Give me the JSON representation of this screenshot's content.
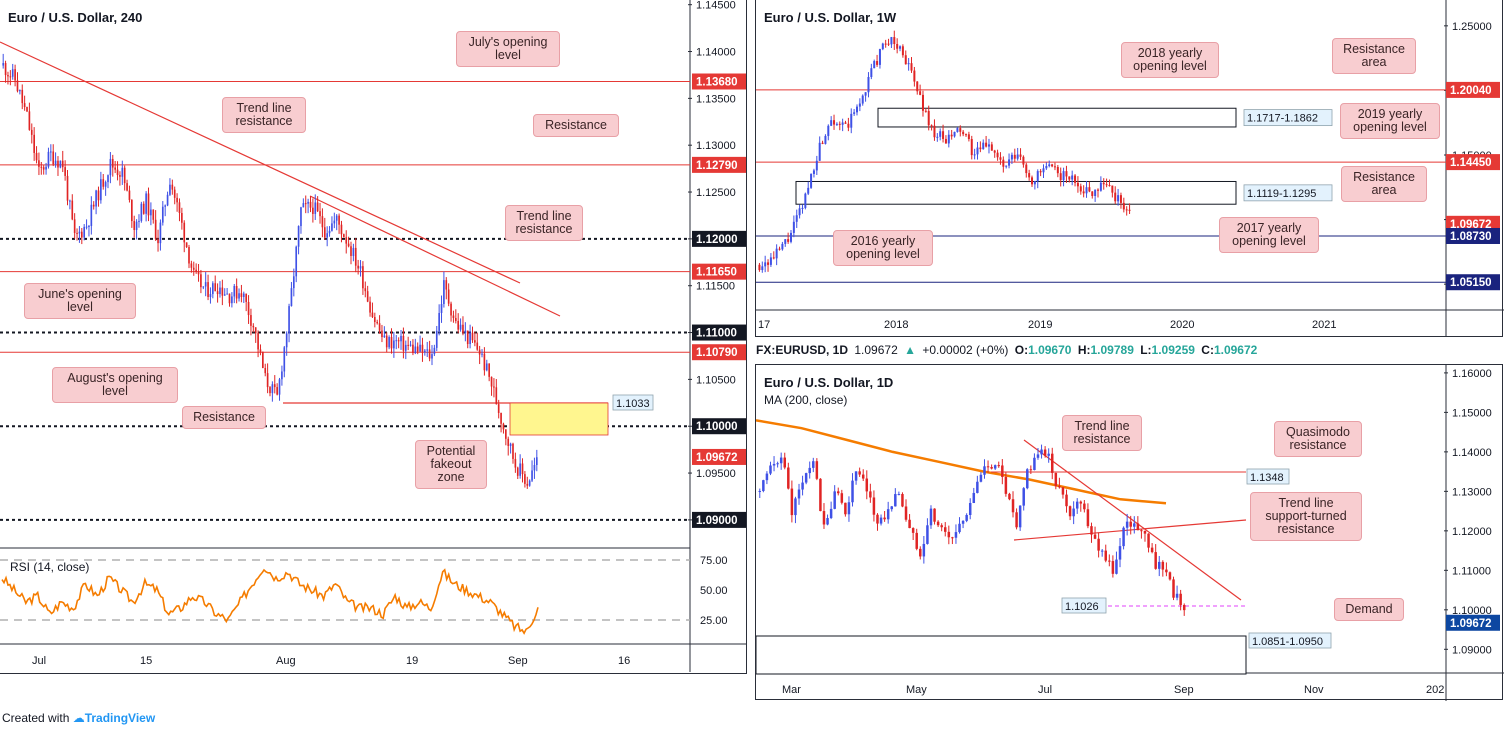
{
  "footer": {
    "prefix": "Created with",
    "brand": "TradingView"
  },
  "ohlc_bar": {
    "symbol": "FX:EURUSD, 1D",
    "last": "1.09672",
    "arrow": "▲",
    "change": "+0.00002 (+0%)",
    "o_label": "O:",
    "o": "1.09670",
    "h_label": "H:",
    "h": "1.09789",
    "l_label": "L:",
    "l": "1.09259",
    "c_label": "C:",
    "c": "1.09672",
    "colors": {
      "up": "#26a69a",
      "text": "#131722"
    }
  },
  "colors": {
    "up": "#26a69a",
    "candle_up": "#3f51e6",
    "candle_down": "#e02424",
    "resistance": "#e53935",
    "support_blue": "#1a237e",
    "ma": "#f57c00",
    "rsi": "#f57c00",
    "callout_bg": "#f8cdd0",
    "callout_border": "#e8a0a6",
    "zone_yellow": "#fff68f"
  },
  "chart_data": [
    {
      "id": "h4",
      "type": "candlestick",
      "title": "Euro / U.S. Dollar, 240",
      "x_ticks": [
        "Jul",
        "15",
        "Aug",
        "19",
        "Sep",
        "16"
      ],
      "y_ticks": [
        "1.14500",
        "1.14000",
        "1.13500",
        "1.13000",
        "1.12500",
        "1.12000",
        "1.11500",
        "1.11000",
        "1.10500",
        "1.10000",
        "1.09500",
        "1.09000"
      ],
      "ylim": [
        1.087,
        1.1455
      ],
      "price_path": [
        1.1385,
        1.137,
        1.133,
        1.127,
        1.129,
        1.128,
        1.12,
        1.1215,
        1.125,
        1.128,
        1.127,
        1.1215,
        1.124,
        1.12,
        1.1265,
        1.1215,
        1.116,
        1.1145,
        1.115,
        1.114,
        1.1145,
        1.1108,
        1.105,
        1.103,
        1.112,
        1.123,
        1.1235,
        1.121,
        1.122,
        1.1195,
        1.1165,
        1.112,
        1.109,
        1.109,
        1.1085,
        1.108,
        1.1075,
        1.115,
        1.111,
        1.1095,
        1.108,
        1.1045,
        1.1,
        1.096,
        1.094,
        1.0967
      ],
      "price_labels": [
        {
          "text": "1.13680",
          "value": 1.1368,
          "bg": "#e53935"
        },
        {
          "text": "1.12790",
          "value": 1.1279,
          "bg": "#e53935"
        },
        {
          "text": "1.12000",
          "value": 1.12,
          "bg": "#131722"
        },
        {
          "text": "1.11650",
          "value": 1.1165,
          "bg": "#e53935"
        },
        {
          "text": "1.11000",
          "value": 1.11,
          "bg": "#131722"
        },
        {
          "text": "1.10790",
          "value": 1.1079,
          "bg": "#e53935"
        },
        {
          "text": "1.10000",
          "value": 1.1,
          "bg": "#131722"
        },
        {
          "text": "1.09672",
          "value": 1.09672,
          "bg": "#e53935"
        },
        {
          "text": "1.09000",
          "value": 1.09,
          "bg": "#131722"
        }
      ],
      "hlines": [
        {
          "value": 1.1368,
          "style": "solid",
          "color": "#e53935"
        },
        {
          "value": 1.1279,
          "style": "solid",
          "color": "#e53935"
        },
        {
          "value": 1.12,
          "style": "dotted",
          "color": "#131722"
        },
        {
          "value": 1.1165,
          "style": "solid",
          "color": "#e53935"
        },
        {
          "value": 1.11,
          "style": "dotted",
          "color": "#131722"
        },
        {
          "value": 1.1079,
          "style": "solid",
          "color": "#e53935"
        },
        {
          "value": 1.1,
          "style": "dotted",
          "color": "#131722"
        },
        {
          "value": 1.09,
          "style": "dotted",
          "color": "#131722"
        }
      ],
      "zone_label": "1.1033",
      "callouts": [
        "July's opening level",
        "Trend line resistance",
        "Resistance",
        "Trend line resistance",
        "June's opening level",
        "August's opening level",
        "Resistance",
        "Potential fakeout zone"
      ],
      "rsi": {
        "label": "RSI (14, close)",
        "y_ticks": [
          "75.00",
          "50.00",
          "25.00"
        ],
        "path": [
          60,
          50,
          40,
          45,
          30,
          40,
          35,
          55,
          45,
          60,
          50,
          40,
          55,
          50,
          30,
          35,
          45,
          40,
          30,
          25,
          40,
          55,
          70,
          60,
          65,
          55,
          50,
          45,
          55,
          40,
          35,
          35,
          30,
          45,
          35,
          40,
          35,
          65,
          55,
          50,
          45,
          40,
          30,
          20,
          15,
          35
        ]
      }
    },
    {
      "id": "weekly",
      "type": "candlestick",
      "title": "Euro / U.S. Dollar, 1W",
      "x_ticks": [
        "17",
        "2018",
        "2019",
        "2020",
        "2021"
      ],
      "y_ticks": [
        "1.25000",
        "1.20000",
        "1.15000",
        "1.10000",
        "1.05000"
      ],
      "ylim": [
        1.03,
        1.27
      ],
      "price_path": [
        1.065,
        1.07,
        1.085,
        1.11,
        1.15,
        1.18,
        1.17,
        1.19,
        1.22,
        1.24,
        1.23,
        1.2,
        1.17,
        1.16,
        1.17,
        1.15,
        1.16,
        1.14,
        1.15,
        1.13,
        1.14,
        1.135,
        1.13,
        1.12,
        1.13,
        1.115,
        1.105
      ],
      "price_labels": [
        {
          "text": "1.20040",
          "value": 1.2004,
          "bg": "#e53935"
        },
        {
          "text": "1.14450",
          "value": 1.1445,
          "bg": "#e53935"
        },
        {
          "text": "1.09672",
          "value": 1.09672,
          "bg": "#e53935"
        },
        {
          "text": "1.08730",
          "value": 1.0873,
          "bg": "#1a237e"
        },
        {
          "text": "1.05150",
          "value": 1.0515,
          "bg": "#1a237e"
        }
      ],
      "hlines": [
        {
          "value": 1.2004,
          "style": "solid",
          "color": "#e53935"
        },
        {
          "value": 1.1445,
          "style": "solid",
          "color": "#e53935"
        },
        {
          "value": 1.0873,
          "style": "solid",
          "color": "#1a237e"
        },
        {
          "value": 1.0515,
          "style": "solid",
          "color": "#1a237e"
        }
      ],
      "zones": [
        {
          "label": "1.1717-1.1862",
          "low": 1.1717,
          "high": 1.1862
        },
        {
          "label": "1.1119-1.1295",
          "low": 1.1119,
          "high": 1.1295
        }
      ],
      "callouts": [
        "2018 yearly opening level",
        "Resistance area",
        "2019 yearly opening level",
        "Resistance area",
        "2017 yearly opening level",
        "2016 yearly opening level"
      ]
    },
    {
      "id": "daily",
      "type": "candlestick",
      "title": "Euro / U.S. Dollar, 1D",
      "subtitle": "MA (200, close)",
      "x_ticks": [
        "Mar",
        "May",
        "Jul",
        "Sep",
        "Nov",
        "202"
      ],
      "y_ticks": [
        "1.16000",
        "1.15000",
        "1.14000",
        "1.13000",
        "1.12000",
        "1.11000",
        "1.10000",
        "1.09000"
      ],
      "ylim": [
        1.084,
        1.162
      ],
      "price_path": [
        1.13,
        1.135,
        1.14,
        1.125,
        1.132,
        1.138,
        1.12,
        1.13,
        1.125,
        1.135,
        1.13,
        1.122,
        1.125,
        1.13,
        1.12,
        1.115,
        1.125,
        1.12,
        1.118,
        1.123,
        1.13,
        1.135,
        1.138,
        1.13,
        1.12,
        1.135,
        1.14,
        1.138,
        1.13,
        1.125,
        1.128,
        1.12,
        1.115,
        1.11,
        1.12,
        1.123,
        1.118,
        1.112,
        1.108,
        1.103,
        1.0967
      ],
      "ma_path": [
        1.148,
        1.146,
        1.143,
        1.14,
        1.1375,
        1.135,
        1.133,
        1.1305,
        1.128,
        1.127
      ],
      "price_labels": [
        {
          "text": "1.09672",
          "value": 1.09672,
          "bg": "#0d47a1"
        }
      ],
      "zones": [
        {
          "label": "1.0851-1.0950",
          "low": 1.0851,
          "high": 1.095
        }
      ],
      "tags": [
        "1.1348",
        "1.1026"
      ],
      "callouts": [
        "Trend line resistance",
        "Quasimodo resistance",
        "Trend line support-turned resistance",
        "Demand"
      ]
    }
  ]
}
